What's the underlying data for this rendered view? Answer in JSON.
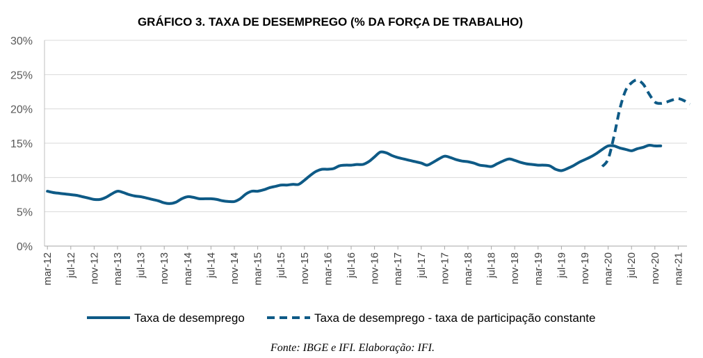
{
  "chart_data": {
    "type": "line",
    "title": "GRÁFICO 3. TAXA DE DESEMPREGO (% DA FORÇA DE TRABALHO)",
    "source": "Fonte: IBGE e IFI. Elaboração: IFI.",
    "ylim": [
      0,
      30
    ],
    "yticks": [
      "0%",
      "5%",
      "10%",
      "15%",
      "20%",
      "25%",
      "30%"
    ],
    "xticks": [
      "mar-12",
      "jul-12",
      "nov-12",
      "mar-13",
      "jul-13",
      "nov-13",
      "mar-14",
      "jul-14",
      "nov-14",
      "mar-15",
      "jul-15",
      "nov-15",
      "mar-16",
      "jul-16",
      "nov-16",
      "mar-17",
      "jul-17",
      "nov-17",
      "mar-18",
      "jul-18",
      "nov-18",
      "mar-19",
      "jul-19",
      "nov-19",
      "mar-20",
      "jul-20",
      "nov-20",
      "mar-21"
    ],
    "grid": true,
    "legend_position": "bottom",
    "series": [
      {
        "name": "Taxa de desemprego",
        "style": "solid",
        "color": "#0e5a86",
        "start": "mar-12",
        "values": [
          8.0,
          7.8,
          7.7,
          7.6,
          7.5,
          7.4,
          7.2,
          7.0,
          6.8,
          6.8,
          7.1,
          7.6,
          8.0,
          7.8,
          7.5,
          7.3,
          7.2,
          7.0,
          6.8,
          6.6,
          6.3,
          6.2,
          6.4,
          6.9,
          7.2,
          7.1,
          6.9,
          6.9,
          6.9,
          6.8,
          6.6,
          6.5,
          6.5,
          6.9,
          7.6,
          8.0,
          8.0,
          8.2,
          8.5,
          8.7,
          8.9,
          8.9,
          9.0,
          9.0,
          9.6,
          10.3,
          10.9,
          11.2,
          11.2,
          11.3,
          11.7,
          11.8,
          11.8,
          11.9,
          11.9,
          12.3,
          13.0,
          13.7,
          13.6,
          13.2,
          12.9,
          12.7,
          12.5,
          12.3,
          12.1,
          11.8,
          12.2,
          12.7,
          13.1,
          12.9,
          12.6,
          12.4,
          12.3,
          12.1,
          11.8,
          11.7,
          11.6,
          12.0,
          12.4,
          12.7,
          12.5,
          12.2,
          12.0,
          11.9,
          11.8,
          11.8,
          11.7,
          11.2,
          11.0,
          11.3,
          11.7,
          12.2,
          12.6,
          13.0,
          13.5,
          14.1,
          14.6,
          14.6,
          14.3,
          14.1,
          13.9,
          14.2,
          14.4,
          14.7,
          14.6,
          14.6
        ]
      },
      {
        "name": "Taxa de desemprego - taxa de participação constante",
        "style": "dashed",
        "color": "#0e5a86",
        "start": "fev-20",
        "values": [
          11.6,
          12.7,
          16.0,
          20.0,
          22.7,
          23.8,
          24.2,
          23.6,
          22.2,
          21.0,
          20.8,
          21.0,
          21.3,
          21.5,
          21.2,
          20.7
        ]
      }
    ]
  }
}
